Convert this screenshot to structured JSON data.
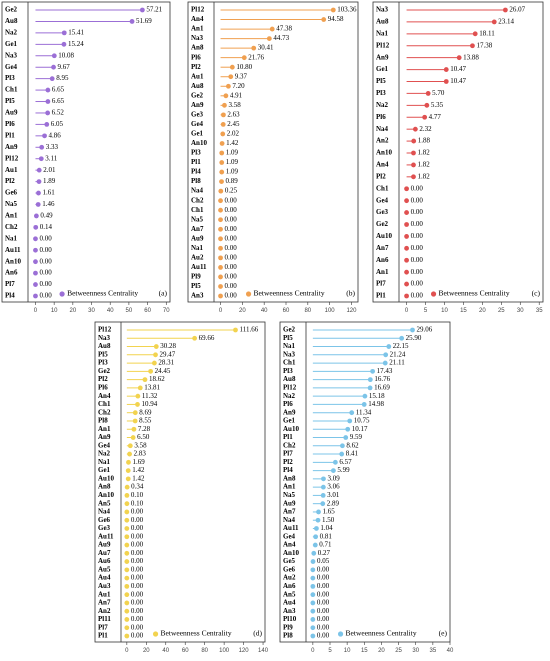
{
  "chart_data": [
    {
      "type": "lollipop",
      "panel_label": "(a)",
      "legend": "lower right",
      "categories": [
        "Ge2",
        "Au8",
        "Na2",
        "Ge1",
        "Na3",
        "Ge4",
        "Pl3",
        "Ch1",
        "Pl5",
        "Au9",
        "Pl6",
        "Pl1",
        "An9",
        "Pl12",
        "Au1",
        "Pl2",
        "Ge6",
        "Na5",
        "An1",
        "Ch2",
        "Na1",
        "Au11",
        "An10",
        "An6",
        "Pl7",
        "Pl4"
      ],
      "series": [
        {
          "name": "Betweenness Centrality",
          "color": "#9b6fd6",
          "values": [
            57.21,
            51.69,
            15.41,
            15.24,
            10.08,
            9.67,
            8.95,
            6.65,
            6.65,
            6.52,
            6.05,
            4.86,
            3.33,
            3.11,
            2.01,
            1.89,
            1.61,
            1.46,
            0.49,
            0.14,
            0,
            0,
            0,
            0,
            0,
            0
          ],
          "value_labels": [
            "57.21",
            "51.69",
            "15.41",
            "15.24",
            "10.08",
            "9.67",
            "8.95",
            "6.65",
            "6.65",
            "6.52",
            "6.05",
            "4.86",
            "3.33",
            "3.11",
            "2.01",
            "1.89",
            "1.61",
            "1.46",
            "0.49",
            "0.14",
            "0.00",
            "0.00",
            "0.00",
            "0.00",
            "0.00",
            "0.00"
          ]
        }
      ],
      "xlim": [
        -4,
        72
      ],
      "xticks": [
        0,
        10,
        20,
        30,
        40,
        50,
        60,
        70
      ]
    },
    {
      "type": "lollipop",
      "panel_label": "(b)",
      "legend": "lower right",
      "categories": [
        "Pl12",
        "An4",
        "An1",
        "Na3",
        "An8",
        "Pl6",
        "Pl2",
        "Au1",
        "Au8",
        "Ge2",
        "An9",
        "Ge3",
        "Ge4",
        "Ge1",
        "An10",
        "Pl3",
        "Pl1",
        "Pl4",
        "Pl8",
        "Na4",
        "Ch2",
        "Ch1",
        "Na5",
        "An7",
        "Au9",
        "Na1",
        "Au2",
        "Au11",
        "Pl9",
        "Pl5",
        "An3"
      ],
      "series": [
        {
          "name": "Betweenness Centrality",
          "color": "#f0a050",
          "values": [
            103.36,
            94.58,
            47.38,
            44.73,
            30.41,
            21.76,
            10.8,
            9.37,
            7.2,
            4.91,
            3.58,
            2.63,
            2.45,
            2.02,
            1.42,
            1.09,
            1.09,
            1.09,
            0.89,
            0.25,
            0,
            0,
            0,
            0,
            0,
            0,
            0,
            0,
            0,
            0,
            0
          ],
          "value_labels": [
            "103.36",
            "94.58",
            "47.38",
            "44.73",
            "30.41",
            "21.76",
            "10.80",
            "9.37",
            "7.20",
            "4.91",
            "3.58",
            "2.63",
            "2.45",
            "2.02",
            "1.42",
            "1.09",
            "1.09",
            "1.09",
            "0.89",
            "0.25",
            "0.00",
            "0.00",
            "0.00",
            "0.00",
            "0.00",
            "0.00",
            "0.00",
            "0.00",
            "0.00",
            "0.00",
            "0.00"
          ]
        }
      ],
      "xlim": [
        -6,
        126
      ],
      "xticks": [
        0,
        20,
        40,
        60,
        80,
        100,
        120
      ]
    },
    {
      "type": "lollipop",
      "panel_label": "(c)",
      "legend": "lower right",
      "categories": [
        "Na3",
        "Au8",
        "Na1",
        "Pl12",
        "An9",
        "Ge1",
        "Pl5",
        "Pl3",
        "Na2",
        "Pl6",
        "Na4",
        "An2",
        "An10",
        "An4",
        "Pl2",
        "Ch1",
        "Ge4",
        "Ge3",
        "Ge2",
        "Au10",
        "An7",
        "An6",
        "An1",
        "Pl7",
        "Pl1"
      ],
      "series": [
        {
          "name": "Betweenness Centrality",
          "color": "#e05050",
          "values": [
            26.07,
            23.14,
            18.11,
            17.38,
            13.88,
            10.47,
            10.47,
            5.7,
            5.35,
            4.77,
            2.32,
            1.88,
            1.82,
            1.82,
            1.82,
            0,
            0,
            0,
            0,
            0,
            0,
            0,
            0,
            0,
            0
          ],
          "value_labels": [
            "26.07",
            "23.14",
            "18.11",
            "17.38",
            "13.88",
            "10.47",
            "10.47",
            "5.70",
            "5.35",
            "4.77",
            "2.32",
            "1.88",
            "1.82",
            "1.82",
            "1.82",
            "0.00",
            "0.00",
            "0.00",
            "0.00",
            "0.00",
            "0.00",
            "0.00",
            "0.00",
            "0.00",
            "0.00"
          ]
        }
      ],
      "xlim": [
        -2,
        36
      ],
      "xticks": [
        0,
        5,
        10,
        15,
        20,
        25,
        30,
        35
      ]
    },
    {
      "type": "lollipop",
      "panel_label": "(d)",
      "legend": "lower right",
      "categories": [
        "Pl12",
        "Na3",
        "Au8",
        "Pl5",
        "Pl3",
        "Ge2",
        "Pl2",
        "Pl6",
        "An4",
        "Ch1",
        "Ch2",
        "Pl8",
        "An1",
        "An9",
        "Ge4",
        "Na2",
        "Na1",
        "Ge1",
        "Au10",
        "An8",
        "An10",
        "An5",
        "Na4",
        "Ge6",
        "Ge3",
        "Au11",
        "Au9",
        "Au7",
        "Au6",
        "Au5",
        "Au4",
        "Au3",
        "Au1",
        "An7",
        "An2",
        "Pl11",
        "Pl7",
        "Pl1"
      ],
      "series": [
        {
          "name": "Betweenness Centrality",
          "color": "#f2d34f",
          "values": [
            111.66,
            69.66,
            30.28,
            29.47,
            28.31,
            24.45,
            18.62,
            13.81,
            11.32,
            10.94,
            8.69,
            8.55,
            7.28,
            6.5,
            3.58,
            2.83,
            1.69,
            1.42,
            1.42,
            0.34,
            0.1,
            0.1,
            0,
            0,
            0,
            0,
            0,
            0,
            0,
            0,
            0,
            0,
            0,
            0,
            0,
            0,
            0,
            0
          ],
          "value_labels": [
            "111.66",
            "69.66",
            "30.28",
            "29.47",
            "28.31",
            "24.45",
            "18.62",
            "13.81",
            "11.32",
            "10.94",
            "8.69",
            "8.55",
            "7.28",
            "6.50",
            "3.58",
            "2.83",
            "1.69",
            "1.42",
            "1.42",
            "0.34",
            "0.10",
            "0.10",
            "0.00",
            "0.00",
            "0.00",
            "0.00",
            "0.00",
            "0.00",
            "0.00",
            "0.00",
            "0.00",
            "0.00",
            "0.00",
            "0.00",
            "0.00",
            "0.00",
            "0.00",
            "0.00"
          ]
        }
      ],
      "xlim": [
        -6,
        142
      ],
      "xticks": [
        0,
        20,
        40,
        60,
        80,
        100,
        120,
        140
      ]
    },
    {
      "type": "lollipop",
      "panel_label": "(e)",
      "legend": "lower right",
      "categories": [
        "Ge2",
        "Pl5",
        "Na1",
        "Na3",
        "Ch1",
        "Pl3",
        "Au8",
        "Pl12",
        "Na2",
        "Pl6",
        "An9",
        "Ge1",
        "Au10",
        "Pl1",
        "Ch2",
        "Pl7",
        "Pl2",
        "Pl4",
        "An8",
        "An1",
        "Na5",
        "Au9",
        "An7",
        "Na4",
        "Au11",
        "Ge4",
        "An4",
        "An10",
        "Ge5",
        "Ge6",
        "Au2",
        "An6",
        "An5",
        "Au4",
        "An3",
        "Pl10",
        "Pl9",
        "Pl8"
      ],
      "series": [
        {
          "name": "Betweenness Centrality",
          "color": "#7cc4e8",
          "values": [
            29.06,
            25.9,
            22.15,
            21.24,
            21.11,
            17.43,
            16.76,
            16.69,
            15.18,
            14.98,
            11.34,
            10.75,
            10.17,
            9.59,
            8.62,
            8.41,
            6.57,
            5.99,
            3.09,
            3.06,
            3.01,
            2.89,
            1.65,
            1.5,
            1.04,
            0.81,
            0.71,
            0.27,
            0.05,
            0,
            0,
            0,
            0,
            0,
            0,
            0,
            0,
            0
          ],
          "value_labels": [
            "29.06",
            "25.90",
            "22.15",
            "21.24",
            "21.11",
            "17.43",
            "16.76",
            "16.69",
            "15.18",
            "14.98",
            "11.34",
            "10.75",
            "10.17",
            "9.59",
            "8.62",
            "8.41",
            "6.57",
            "5.99",
            "3.09",
            "3.06",
            "3.01",
            "2.89",
            "1.65",
            "1.50",
            "1.04",
            "0.81",
            "0.71",
            "0.27",
            "0.05",
            "0.00",
            "0.00",
            "0.00",
            "0.00",
            "0.00",
            "0.00",
            "0.00",
            "0.00",
            "0.00"
          ]
        }
      ],
      "xlim": [
        -2,
        40
      ],
      "xticks": [
        0,
        5,
        10,
        15,
        20,
        25,
        30,
        35,
        40
      ]
    }
  ]
}
